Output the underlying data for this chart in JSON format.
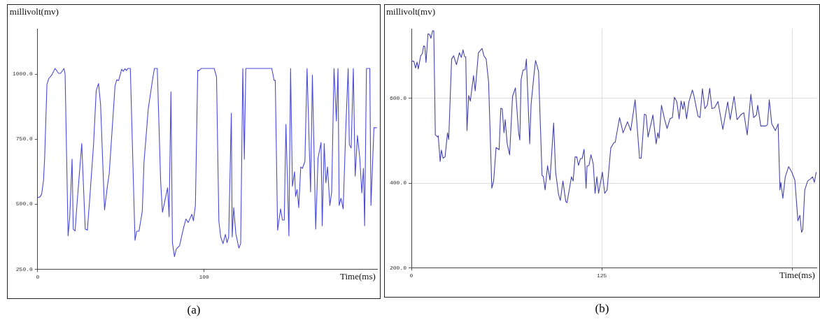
{
  "chart_data": [
    {
      "type": "line",
      "ylabel": "millivolt(mv)",
      "xlabel": "Time(ms)",
      "annotations": [
        "(a)"
      ],
      "xlim": [
        0,
        204
      ],
      "xticks": [
        0,
        100
      ],
      "ylim": [
        250,
        1175
      ],
      "yticks": [
        {
          "value": 250,
          "label": "250.0"
        },
        {
          "value": 500,
          "label": "500.0"
        },
        {
          "value": 750,
          "label": "750.0"
        },
        {
          "value": 1000,
          "label": "1000.0"
        }
      ],
      "grid": false,
      "series": [
        {
          "color": "#4a4ad8",
          "x": [
            0,
            1.4,
            2.4,
            3.5,
            4.2,
            5.6,
            6.7,
            8.4,
            10.5,
            12.6,
            13.8,
            15.8,
            16.5,
            18.3,
            19.3,
            20.7,
            21.4,
            22.5,
            23.7,
            26.5,
            28.6,
            29.9,
            31.4,
            33.6,
            35.2,
            36.6,
            37.8,
            40.2,
            41.9,
            43,
            46.5,
            47.5,
            48.7,
            50.5,
            51.5,
            52.5,
            53.3,
            54.3,
            55.7,
            58.5,
            59.5,
            60.9,
            62.9,
            63.9,
            66.5,
            69.3,
            70.2,
            71.9,
            73.9,
            75,
            78.1,
            79,
            80.1,
            81,
            82.2,
            83.3,
            85.3,
            87.7,
            89.1,
            90.5,
            92.7,
            93.6,
            94.8,
            96.2,
            96.9,
            98.3,
            106.1,
            107.5,
            108.9,
            110,
            111.4,
            112.8,
            113.8,
            114.8,
            116.4,
            116.9,
            117.8,
            119.1,
            120.9,
            122,
            123.3,
            124.2,
            125.1,
            140.7,
            142.1,
            142.8,
            144.2,
            146,
            147.1,
            148.2,
            149.2,
            151,
            152,
            153.1,
            154.4,
            155,
            155.9,
            156.9,
            158.1,
            159.1,
            160.6,
            161.9,
            164,
            165.1,
            167.1,
            168.5,
            170.3,
            171,
            172.2,
            173.2,
            174.2,
            175.6,
            176.7,
            178.1,
            179.5,
            180.5,
            181.2,
            182.3,
            183.6,
            185.2,
            186.6,
            187.3,
            188.4,
            189.7,
            190.8,
            192.2,
            193.6,
            194.8,
            195.8,
            196.5,
            197.6,
            199.6,
            200.3,
            202.1,
            203.8
          ],
          "values": [
            525,
            528,
            538,
            590,
            676,
            961,
            983,
            996,
            1022,
            1003,
            1003,
            1022,
            1000,
            378,
            452,
            673,
            404,
            397,
            504,
            733,
            404,
            400,
            530,
            729,
            937,
            964,
            885,
            478,
            569,
            617,
            954,
            978,
            976,
            1019,
            1011,
            1021,
            1014,
            1022,
            1022,
            361,
            396,
            396,
            474,
            660,
            868,
            989,
            1022,
            1022,
            590,
            469,
            563,
            452,
            932,
            352,
            298,
            327,
            341,
            409,
            443,
            430,
            461,
            436,
            495,
            1015,
            1013,
            1022,
            1022,
            989,
            435,
            374,
            348,
            384,
            352,
            374,
            850,
            374,
            487,
            387,
            331,
            348,
            1022,
            673,
            1022,
            1022,
            976,
            976,
            400,
            482,
            439,
            439,
            807,
            378,
            1022,
            569,
            625,
            530,
            556,
            487,
            643,
            638,
            664,
            1022,
            547,
            996,
            404,
            677,
            737,
            417,
            733,
            582,
            643,
            495,
            547,
            1022,
            820,
            1022,
            495,
            523,
            482,
            794,
            1022,
            729,
            716,
            1022,
            608,
            764,
            676,
            543,
            638,
            417,
            1022,
            1022,
            495,
            794,
            794
          ]
        }
      ]
    },
    {
      "type": "line",
      "ylabel": "millivolt(mv)",
      "xlabel": "Time(ms)",
      "annotations": [
        "(b)"
      ],
      "xlim": [
        0,
        266
      ],
      "xticks": [
        0,
        125,
        {
          "value": 250,
          "label": null
        }
      ],
      "ylim": [
        200,
        765
      ],
      "yticks": [
        {
          "value": 200,
          "label": "200.0"
        },
        {
          "value": 400,
          "label": "400.0"
        },
        {
          "value": 600,
          "label": "600.0"
        }
      ],
      "grid": true,
      "series": [
        {
          "color": "#4444aa",
          "x": [
            0,
            1.6,
            2.7,
            3.7,
            4.5,
            6.1,
            7.2,
            8,
            8.8,
            9.6,
            10.9,
            12,
            12.8,
            13.9,
            14.7,
            15.7,
            17.3,
            17.6,
            18.9,
            19.7,
            20.8,
            22.1,
            23.7,
            24.5,
            26.4,
            27.7,
            29.6,
            31.5,
            32.8,
            33.9,
            34.9,
            35.7,
            36.5,
            37.6,
            38.7,
            40.8,
            41.9,
            44,
            46.4,
            47.6,
            49.1,
            50.7,
            52.8,
            54,
            55.6,
            57.6,
            58.7,
            59.6,
            60.8,
            61.6,
            62.9,
            64.5,
            66.4,
            68.3,
            70.4,
            71.2,
            72,
            73.3,
            74.7,
            75.5,
            77.7,
            78.6,
            80.2,
            81.5,
            83.5,
            85.8,
            86.6,
            87.8,
            89.4,
            91,
            93.4,
            94.7,
            96.6,
            97.8,
            99.5,
            101.4,
            102.2,
            105.1,
            106.2,
            107.5,
            108.6,
            109.7,
            111,
            112.1,
            113.4,
            114.7,
            115.3,
            116.6,
            117.9,
            119.4,
            120.6,
            121.8,
            122.9,
            125.4,
            126.9,
            128.5,
            130.9,
            133,
            133.8,
            136.7,
            139,
            141.9,
            144,
            146.9,
            149.8,
            150.9,
            153,
            154.1,
            155.4,
            157,
            158.6,
            160.7,
            161.8,
            162.6,
            164.2,
            166.3,
            167.9,
            169.8,
            171.4,
            172.7,
            174.3,
            175.8,
            177.1,
            178.3,
            179.1,
            180.7,
            182.2,
            184.5,
            185.5,
            188.2,
            189.5,
            191.1,
            192.7,
            194.3,
            195.9,
            197.3,
            199.1,
            201.3,
            204.5,
            207.7,
            209.3,
            211.9,
            213.8,
            216.7,
            218.3,
            220.5,
            222.9,
            224.7,
            226.6,
            227.4,
            229.4,
            232.7,
            233.8,
            235,
            236.6,
            239,
            240.8,
            242,
            242.6,
            243.9,
            245.5,
            247.7,
            249.8,
            251.8,
            253.8,
            255.1,
            256.2,
            257,
            258.3,
            260.2,
            262.1,
            263.4,
            264.6,
            265.8
          ],
          "values": [
            688,
            688,
            672,
            686,
            670,
            701,
            706,
            724,
            723,
            685,
            753,
            751,
            742,
            760,
            760,
            514,
            509,
            512,
            451,
            478,
            459,
            462,
            519,
            503,
            693,
            701,
            680,
            708,
            697,
            715,
            699,
            698,
            524,
            607,
            594,
            654,
            618,
            708,
            718,
            701,
            693,
            638,
            388,
            405,
            484,
            479,
            577,
            576,
            519,
            550,
            493,
            467,
            605,
            625,
            519,
            502,
            644,
            667,
            668,
            693,
            493,
            586,
            646,
            690,
            664,
            418,
            416,
            384,
            441,
            407,
            542,
            426,
            374,
            359,
            405,
            356,
            354,
            415,
            405,
            462,
            462,
            442,
            458,
            458,
            480,
            388,
            440,
            442,
            467,
            446,
            376,
            415,
            376,
            426,
            376,
            384,
            483,
            496,
            496,
            555,
            519,
            545,
            524,
            597,
            459,
            459,
            563,
            561,
            509,
            535,
            561,
            493,
            519,
            506,
            584,
            550,
            529,
            552,
            555,
            603,
            592,
            552,
            594,
            574,
            593,
            552,
            592,
            620,
            607,
            558,
            555,
            623,
            576,
            584,
            624,
            576,
            578,
            593,
            527,
            592,
            550,
            605,
            550,
            563,
            566,
            514,
            610,
            555,
            561,
            584,
            535,
            535,
            538,
            597,
            540,
            524,
            540,
            384,
            402,
            364,
            415,
            439,
            426,
            407,
            311,
            324,
            284,
            290,
            384,
            405,
            410,
            415,
            402,
            426
          ]
        }
      ]
    }
  ]
}
